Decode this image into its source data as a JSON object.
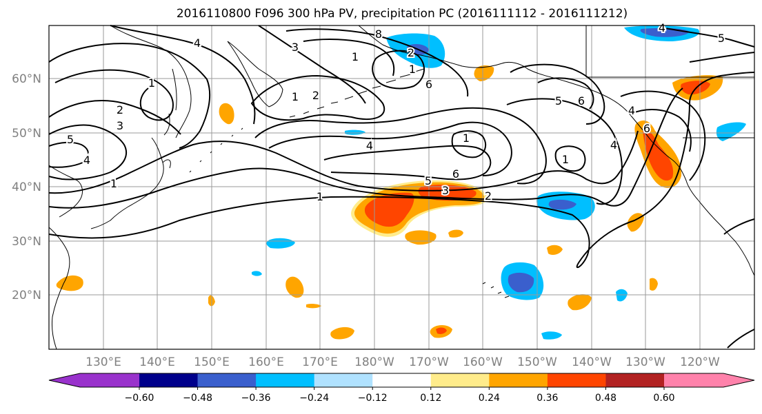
{
  "title": "2016110800 F096 300 hPa PV, precipitation PC (2016111112 - 2016111212)",
  "lat_labels": [
    "60°N",
    "50°N",
    "40°N",
    "30°N",
    "20°N"
  ],
  "lon_labels": [
    "130°E",
    "140°E",
    "150°E",
    "160°E",
    "170°E",
    "180°W",
    "170°W",
    "160°W",
    "150°W",
    "140°W",
    "130°W",
    "120°W"
  ],
  "colorbar": {
    "labels": [
      "−0.60",
      "−0.48",
      "−0.36",
      "−0.24",
      "−0.12",
      "0.12",
      "0.24",
      "0.36",
      "0.48",
      "0.60"
    ],
    "colors": [
      "#9932cc",
      "#00008b",
      "#3a5fcd",
      "#00bfff",
      "#b0e2ff",
      "#ffffff",
      "#ffec8b",
      "#ffa500",
      "#ff4500",
      "#b22222",
      "#ff82ab"
    ]
  },
  "pv_labels": [
    "5",
    "4",
    "1",
    "2",
    "3",
    "1",
    "2",
    "3",
    "4",
    "8",
    "1",
    "4",
    "2",
    "1",
    "6",
    "5",
    "6",
    "1",
    "4",
    "6",
    "1",
    "4",
    "1",
    "5",
    "6",
    "3",
    "1",
    "2",
    "4",
    "5"
  ],
  "colors": {
    "orange": "#ffa500",
    "red_orange": "#ff4500",
    "light_yellow": "#ffec8b",
    "sky_blue": "#00bfff",
    "mid_blue": "#3a5fcd",
    "light_blue": "#b0e2ff"
  }
}
